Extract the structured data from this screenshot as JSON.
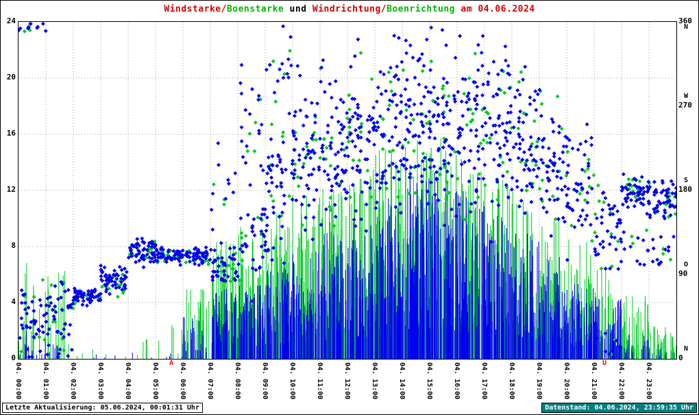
{
  "title": {
    "segments": [
      {
        "text": "Windstarke/",
        "color": "#d40000"
      },
      {
        "text": "Boenstarke",
        "color": "#00b400"
      },
      {
        "text": " und ",
        "color": "#000000"
      },
      {
        "text": "Windrichtung/",
        "color": "#d40000"
      },
      {
        "text": "Boenrichtung",
        "color": "#00b400"
      },
      {
        "text": " am 04.06.2024",
        "color": "#d40000"
      }
    ]
  },
  "footer": {
    "left": "Letzte Aktualisierung: 05.06.2024, 00:01:31 Uhr",
    "right": "Datenstand: 04.06.2024, 23:59:35 Uhr"
  },
  "chart_data": {
    "type": "bar+scatter",
    "title": "Windstarke/Boenstarke und Windrichtung/Boenrichtung am 04.06.2024",
    "seed": 7,
    "grid": true,
    "legend": "none",
    "x_labels": [
      "04. 00:00",
      "04. 01:00",
      "04. 02:00",
      "04. 03:00",
      "04. 04:00",
      "04. 05:00",
      "04. 06:00",
      "04. 07:00",
      "04. 08:00",
      "04. 09:00",
      "04. 10:00",
      "04. 11:00",
      "04. 12:00",
      "04. 13:00",
      "04. 14:00",
      "04. 15:00",
      "04. 16:00",
      "04. 17:00",
      "04. 18:00",
      "04. 19:00",
      "04. 20:00",
      "04. 21:00",
      "04. 22:00",
      "04. 23:00"
    ],
    "y_left": {
      "ticks": [
        0,
        4,
        8,
        12,
        16,
        20,
        24
      ],
      "range": [
        0,
        24
      ],
      "grid": [
        4,
        8,
        12,
        16,
        20
      ]
    },
    "y_right": {
      "ticks": [
        0,
        90,
        180,
        270,
        360
      ],
      "letters": [
        "N",
        "O",
        "S",
        "W",
        "N"
      ],
      "range": [
        0,
        360
      ]
    },
    "series": {
      "gust_bars": {
        "name": "Boenstarke",
        "type": "bar",
        "color": "#00cc22",
        "hourly_max": [
          7,
          6.5,
          1,
          0.5,
          1.5,
          2.5,
          5,
          8.5,
          9.5,
          11,
          12,
          12.5,
          13.5,
          15,
          16,
          16,
          14.5,
          13,
          12,
          10,
          8.5,
          6.5,
          4.5,
          2.5
        ],
        "hourly_count": [
          14,
          10,
          3,
          2,
          4,
          6,
          22,
          45,
          50,
          50,
          55,
          55,
          55,
          55,
          55,
          55,
          55,
          50,
          50,
          45,
          40,
          35,
          40,
          35
        ]
      },
      "wind_bars": {
        "name": "Windstarke",
        "type": "bar",
        "color": "#0000ee",
        "hourly_max": [
          2,
          1.2,
          0.4,
          0.3,
          0.5,
          0.8,
          3,
          5,
          5.5,
          6.5,
          8,
          9,
          10,
          11.5,
          13.5,
          13.5,
          12,
          10.5,
          9,
          7.5,
          6,
          4.5,
          2,
          1.5
        ],
        "hourly_count": [
          10,
          6,
          2,
          2,
          2,
          4,
          25,
          55,
          60,
          60,
          65,
          65,
          65,
          65,
          65,
          65,
          65,
          65,
          60,
          60,
          55,
          45,
          15,
          10
        ]
      },
      "wind_dir": {
        "name": "Windrichtung",
        "type": "scatter",
        "color": "#0000ee",
        "marker": "diamond",
        "hourly_clusters": [
          [
            [
              35,
              35,
              35
            ],
            [
              355,
              6,
              10
            ]
          ],
          [
            [
              55,
              30,
              35
            ],
            [
              15,
              15,
              8
            ]
          ],
          [
            [
              67,
              7,
              55
            ]
          ],
          [
            [
              85,
              14,
              55
            ]
          ],
          [
            [
              115,
              12,
              55
            ]
          ],
          [
            [
              110,
              6,
              50
            ]
          ],
          [
            [
              110,
              8,
              48
            ]
          ],
          [
            [
              100,
              22,
              40
            ],
            [
              190,
              55,
              10
            ]
          ],
          [
            [
              130,
              45,
              35
            ],
            [
              250,
              60,
              18
            ]
          ],
          [
            [
              180,
              70,
              45
            ],
            [
              305,
              35,
              14
            ]
          ],
          [
            [
              215,
              75,
              55
            ]
          ],
          [
            [
              225,
              78,
              58
            ]
          ],
          [
            [
              235,
              80,
              58
            ]
          ],
          [
            [
              240,
              82,
              60
            ]
          ],
          [
            [
              250,
              80,
              60
            ]
          ],
          [
            [
              250,
              80,
              60
            ]
          ],
          [
            [
              245,
              80,
              58
            ]
          ],
          [
            [
              240,
              78,
              58
            ]
          ],
          [
            [
              230,
              72,
              55
            ]
          ],
          [
            [
              210,
              60,
              50
            ]
          ],
          [
            [
              180,
              58,
              45
            ]
          ],
          [
            [
              140,
              48,
              38
            ],
            [
              15,
              10,
              7
            ]
          ],
          [
            [
              180,
              14,
              50
            ],
            [
              120,
              28,
              10
            ]
          ],
          [
            [
              172,
              18,
              50
            ],
            [
              108,
              22,
              12
            ]
          ]
        ]
      },
      "gust_dir": {
        "name": "Boenrichtung",
        "type": "scatter",
        "color": "#00cc22",
        "marker": "diamond",
        "density_scale": 0.25
      }
    },
    "annotations": [
      {
        "text": "A",
        "hour": 5.6,
        "color": "#ff0000"
      },
      {
        "text": "U",
        "hour": 21.4,
        "color": "#ff0000"
      }
    ]
  }
}
